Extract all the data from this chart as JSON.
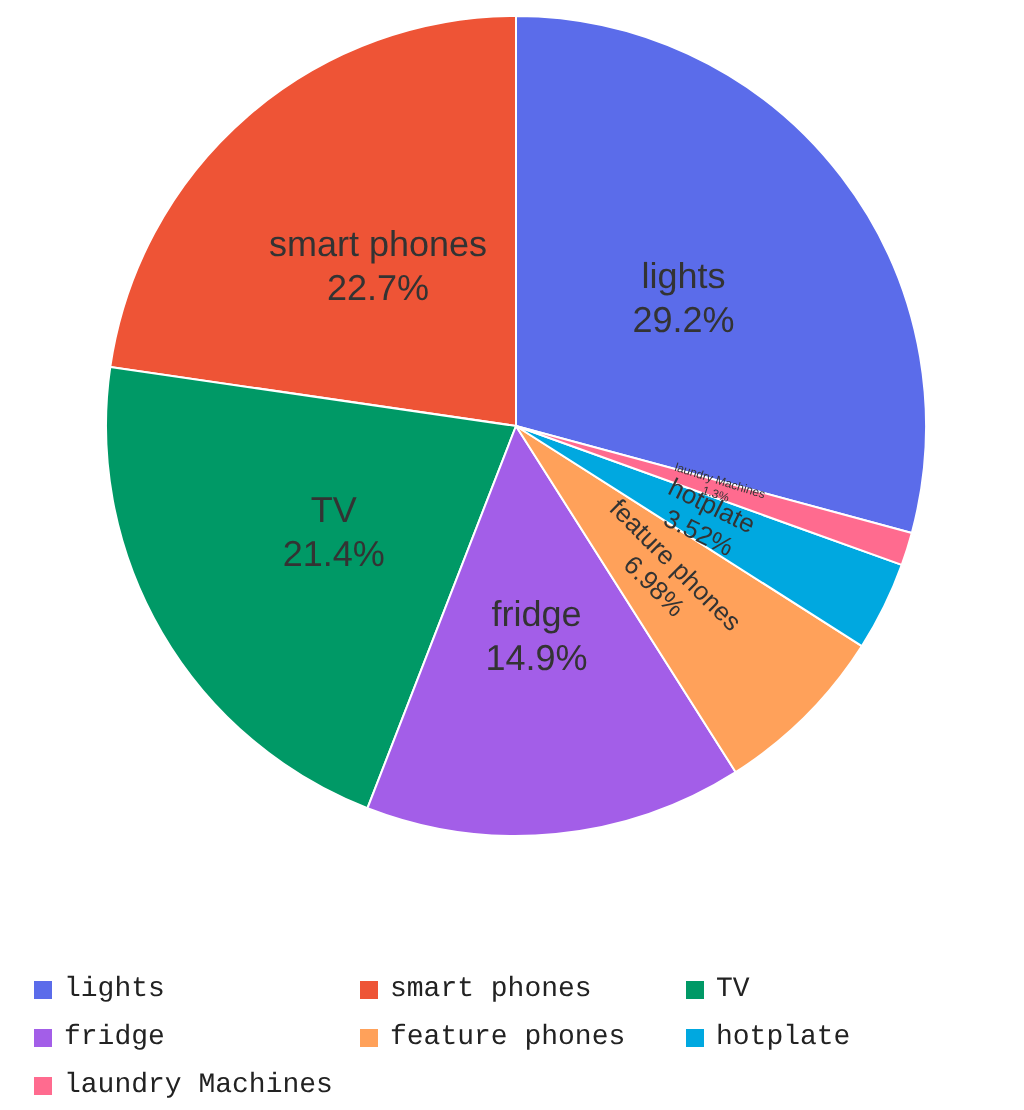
{
  "chart_data": {
    "type": "pie",
    "categories": [
      "lights",
      "smart phones",
      "TV",
      "fridge",
      "feature phones",
      "hotplate",
      "laundry Machines"
    ],
    "values": [
      29.2,
      22.7,
      21.4,
      14.9,
      6.98,
      3.52,
      1.3
    ],
    "value_labels": [
      "29.2%",
      "22.7%",
      "21.4%",
      "14.9%",
      "6.98%",
      "3.52%",
      "1.3%"
    ],
    "colors": [
      "#5b6cea",
      "#ee5436",
      "#009966",
      "#a35ee8",
      "#ffa15a",
      "#00a8e0",
      "#ff6b8f"
    ],
    "legend": "bottom"
  }
}
